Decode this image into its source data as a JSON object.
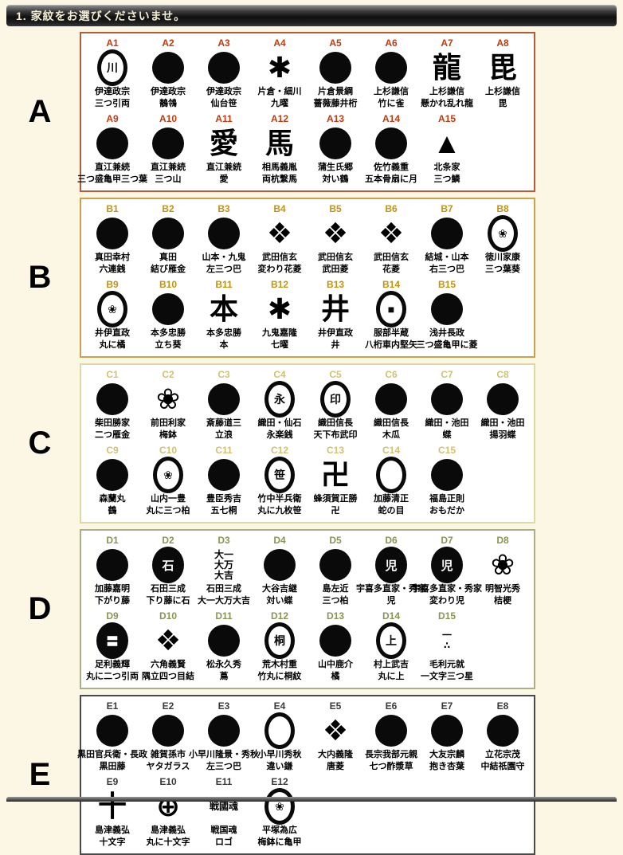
{
  "header": {
    "title": "1. 家紋をお選びくださいませ。"
  },
  "sections": [
    {
      "letter": "A",
      "border_color": "#b65c38",
      "code_color": "#c03b10",
      "items": [
        {
          "code": "A1",
          "name1": "伊達政宗",
          "name2": "三つ引両",
          "icon": {
            "type": "ring",
            "glyph": "川"
          }
        },
        {
          "code": "A2",
          "name1": "伊達政宗",
          "name2": "鶺鴒",
          "icon": {
            "type": "disc",
            "glyph": ""
          }
        },
        {
          "code": "A3",
          "name1": "伊達政宗",
          "name2": "仙台笹",
          "icon": {
            "type": "disc",
            "glyph": ""
          }
        },
        {
          "code": "A4",
          "name1": "片倉・細川",
          "name2": "九曜",
          "icon": {
            "type": "glyph",
            "glyph": "✱"
          }
        },
        {
          "code": "A5",
          "name1": "片倉景綱",
          "name2": "薔薇藤井桁",
          "icon": {
            "type": "disc",
            "glyph": ""
          }
        },
        {
          "code": "A6",
          "name1": "上杉謙信",
          "name2": "竹に雀",
          "icon": {
            "type": "disc",
            "glyph": ""
          }
        },
        {
          "code": "A7",
          "name1": "上杉謙信",
          "name2": "懸かれ乱れ龍",
          "icon": {
            "type": "glyph",
            "glyph": "龍"
          }
        },
        {
          "code": "A8",
          "name1": "上杉謙信",
          "name2": "毘",
          "icon": {
            "type": "glyph",
            "glyph": "毘"
          }
        },
        {
          "code": "A9",
          "name1": "直江兼続",
          "name2": "三つ盛亀甲三つ葉",
          "icon": {
            "type": "disc",
            "glyph": ""
          }
        },
        {
          "code": "A10",
          "name1": "直江兼続",
          "name2": "三つ山",
          "icon": {
            "type": "disc",
            "glyph": ""
          }
        },
        {
          "code": "A11",
          "name1": "直江兼続",
          "name2": "愛",
          "icon": {
            "type": "glyph",
            "glyph": "愛"
          }
        },
        {
          "code": "A12",
          "name1": "相馬義胤",
          "name2": "両杭繫馬",
          "icon": {
            "type": "glyph",
            "glyph": "馬"
          }
        },
        {
          "code": "A13",
          "name1": "蒲生氏郷",
          "name2": "対い鶴",
          "icon": {
            "type": "disc",
            "glyph": ""
          }
        },
        {
          "code": "A14",
          "name1": "佐竹義重",
          "name2": "五本骨扇に月",
          "icon": {
            "type": "disc",
            "glyph": ""
          }
        },
        {
          "code": "A15",
          "name1": "北条家",
          "name2": "三つ鱗",
          "icon": {
            "type": "glyph",
            "glyph": "▲"
          }
        }
      ]
    },
    {
      "letter": "B",
      "border_color": "#c8a34a",
      "code_color": "#bf9414",
      "items": [
        {
          "code": "B1",
          "name1": "真田幸村",
          "name2": "六連銭",
          "icon": {
            "type": "disc",
            "glyph": ""
          }
        },
        {
          "code": "B2",
          "name1": "真田",
          "name2": "結び雁金",
          "icon": {
            "type": "disc",
            "glyph": ""
          }
        },
        {
          "code": "B3",
          "name1": "山本・九鬼",
          "name2": "左三つ巴",
          "icon": {
            "type": "disc",
            "glyph": ""
          }
        },
        {
          "code": "B4",
          "name1": "武田信玄",
          "name2": "変わり花菱",
          "icon": {
            "type": "glyph",
            "glyph": "❖"
          }
        },
        {
          "code": "B5",
          "name1": "武田信玄",
          "name2": "武田菱",
          "icon": {
            "type": "glyph",
            "glyph": "❖"
          }
        },
        {
          "code": "B6",
          "name1": "武田信玄",
          "name2": "花菱",
          "icon": {
            "type": "glyph",
            "glyph": "❖"
          }
        },
        {
          "code": "B7",
          "name1": "結城・山本",
          "name2": "右三つ巴",
          "icon": {
            "type": "disc",
            "glyph": ""
          }
        },
        {
          "code": "B8",
          "name1": "徳川家康",
          "name2": "三つ葉葵",
          "icon": {
            "type": "ring",
            "glyph": "❀"
          }
        },
        {
          "code": "B9",
          "name1": "井伊直政",
          "name2": "丸に橘",
          "icon": {
            "type": "ring",
            "glyph": "❀"
          }
        },
        {
          "code": "B10",
          "name1": "本多忠勝",
          "name2": "立ち葵",
          "icon": {
            "type": "disc",
            "glyph": ""
          }
        },
        {
          "code": "B11",
          "name1": "本多忠勝",
          "name2": "本",
          "icon": {
            "type": "glyph",
            "glyph": "本"
          }
        },
        {
          "code": "B12",
          "name1": "九鬼嘉隆",
          "name2": "七曜",
          "icon": {
            "type": "glyph",
            "glyph": "✱"
          }
        },
        {
          "code": "B13",
          "name1": "井伊直政",
          "name2": "井",
          "icon": {
            "type": "glyph",
            "glyph": "井"
          }
        },
        {
          "code": "B14",
          "name1": "服部半蔵",
          "name2": "八桁車内堅矢",
          "icon": {
            "type": "ring",
            "glyph": "■"
          }
        },
        {
          "code": "B15",
          "name1": "浅井長政",
          "name2": "三つ盛亀甲に菱",
          "icon": {
            "type": "disc",
            "glyph": ""
          }
        }
      ]
    },
    {
      "letter": "C",
      "border_color": "#ded8a4",
      "code_color": "#cfc271",
      "items": [
        {
          "code": "C1",
          "name1": "柴田勝家",
          "name2": "二つ雁金",
          "icon": {
            "type": "disc",
            "glyph": ""
          }
        },
        {
          "code": "C2",
          "name1": "前田利家",
          "name2": "梅鉢",
          "icon": {
            "type": "glyph",
            "glyph": "❀"
          }
        },
        {
          "code": "C3",
          "name1": "斎藤道三",
          "name2": "立浪",
          "icon": {
            "type": "disc",
            "glyph": ""
          }
        },
        {
          "code": "C4",
          "name1": "織田・仙石",
          "name2": "永楽銭",
          "icon": {
            "type": "ring",
            "glyph": "永"
          }
        },
        {
          "code": "C5",
          "name1": "織田信長",
          "name2": "天下布武印",
          "icon": {
            "type": "ring",
            "glyph": "印"
          }
        },
        {
          "code": "C6",
          "name1": "織田信長",
          "name2": "木瓜",
          "icon": {
            "type": "disc",
            "glyph": ""
          }
        },
        {
          "code": "C7",
          "name1": "織田・池田",
          "name2": "蝶",
          "icon": {
            "type": "disc",
            "glyph": ""
          }
        },
        {
          "code": "C8",
          "name1": "織田・池田",
          "name2": "揚羽蝶",
          "icon": {
            "type": "disc",
            "glyph": ""
          }
        },
        {
          "code": "C9",
          "name1": "森蘭丸",
          "name2": "鶴",
          "icon": {
            "type": "disc",
            "glyph": ""
          }
        },
        {
          "code": "C10",
          "name1": "山内一豊",
          "name2": "丸に三つ柏",
          "icon": {
            "type": "ring",
            "glyph": "❀"
          }
        },
        {
          "code": "C11",
          "name1": "豊臣秀吉",
          "name2": "五七桐",
          "icon": {
            "type": "disc",
            "glyph": ""
          }
        },
        {
          "code": "C12",
          "name1": "竹中半兵衛",
          "name2": "丸に九枚笹",
          "icon": {
            "type": "ring",
            "glyph": "笹"
          }
        },
        {
          "code": "C13",
          "name1": "蜂須賀正勝",
          "name2": "卍",
          "icon": {
            "type": "glyph",
            "glyph": "卍"
          }
        },
        {
          "code": "C14",
          "name1": "加藤清正",
          "name2": "蛇の目",
          "icon": {
            "type": "ring",
            "glyph": ""
          }
        },
        {
          "code": "C15",
          "name1": "福島正則",
          "name2": "おもだか",
          "icon": {
            "type": "disc",
            "glyph": ""
          }
        }
      ]
    },
    {
      "letter": "D",
      "border_color": "#abaf85",
      "code_color": "#8a9455",
      "items": [
        {
          "code": "D1",
          "name1": "加藤嘉明",
          "name2": "下がり藤",
          "icon": {
            "type": "disc",
            "glyph": ""
          }
        },
        {
          "code": "D2",
          "name1": "石田三成",
          "name2": "下り藤に石",
          "icon": {
            "type": "disc-text",
            "glyph": "石"
          }
        },
        {
          "code": "D3",
          "name1": "石田三成",
          "name2": "大一大万大吉",
          "icon": {
            "type": "text",
            "glyph": "大一\n大万\n大吉"
          }
        },
        {
          "code": "D4",
          "name1": "大谷吉継",
          "name2": "対い蝶",
          "icon": {
            "type": "disc",
            "glyph": ""
          }
        },
        {
          "code": "D5",
          "name1": "島左近",
          "name2": "三つ柏",
          "icon": {
            "type": "disc",
            "glyph": ""
          }
        },
        {
          "code": "D6",
          "name1": "宇喜多直家・秀家",
          "name2": "児",
          "icon": {
            "type": "disc-text",
            "glyph": "児"
          }
        },
        {
          "code": "D7",
          "name1": "宇喜多直家・秀家",
          "name2": "変わり児",
          "icon": {
            "type": "disc-text",
            "glyph": "児"
          }
        },
        {
          "code": "D8",
          "name1": "明智光秀",
          "name2": "桔梗",
          "icon": {
            "type": "glyph",
            "glyph": "❀"
          }
        },
        {
          "code": "D9",
          "name1": "足利義輝",
          "name2": "丸に二つ引両",
          "icon": {
            "type": "disc-text",
            "glyph": "〓"
          }
        },
        {
          "code": "D10",
          "name1": "六角義賢",
          "name2": "隅立四つ目結",
          "icon": {
            "type": "glyph",
            "glyph": "❖"
          }
        },
        {
          "code": "D11",
          "name1": "松永久秀",
          "name2": "蔦",
          "icon": {
            "type": "disc",
            "glyph": ""
          }
        },
        {
          "code": "D12",
          "name1": "荒木村重",
          "name2": "竹丸に桐紋",
          "icon": {
            "type": "ring",
            "glyph": "桐"
          }
        },
        {
          "code": "D13",
          "name1": "山中鹿介",
          "name2": "橘",
          "icon": {
            "type": "disc",
            "glyph": ""
          }
        },
        {
          "code": "D14",
          "name1": "村上武吉",
          "name2": "丸に上",
          "icon": {
            "type": "ring",
            "glyph": "上"
          }
        },
        {
          "code": "D15",
          "name1": "毛利元就",
          "name2": "一文字三つ星",
          "icon": {
            "type": "text",
            "glyph": "一\n∴"
          }
        }
      ]
    },
    {
      "letter": "E",
      "border_color": "#4a4a4a",
      "code_color": "#3a3a3a",
      "items": [
        {
          "code": "E1",
          "name1": "黒田官兵衛・長政",
          "name2": "黒田藤",
          "icon": {
            "type": "disc",
            "glyph": ""
          }
        },
        {
          "code": "E2",
          "name1": "雑賀孫市",
          "name2": "ヤタガラス",
          "icon": {
            "type": "disc",
            "glyph": ""
          }
        },
        {
          "code": "E3",
          "name1": "小早川隆景・秀秋",
          "name2": "左三つ巴",
          "icon": {
            "type": "disc",
            "glyph": ""
          }
        },
        {
          "code": "E4",
          "name1": "小早川秀秋",
          "name2": "違い鎌",
          "icon": {
            "type": "ring",
            "glyph": ""
          }
        },
        {
          "code": "E5",
          "name1": "大内義隆",
          "name2": "唐菱",
          "icon": {
            "type": "glyph",
            "glyph": "❖"
          }
        },
        {
          "code": "E6",
          "name1": "長宗我部元親",
          "name2": "七つ酢漿草",
          "icon": {
            "type": "disc",
            "glyph": ""
          }
        },
        {
          "code": "E7",
          "name1": "大友宗麟",
          "name2": "抱き杏葉",
          "icon": {
            "type": "disc",
            "glyph": ""
          }
        },
        {
          "code": "E8",
          "name1": "立花宗茂",
          "name2": "中結祇園守",
          "icon": {
            "type": "disc",
            "glyph": ""
          }
        },
        {
          "code": "E9",
          "name1": "島津義弘",
          "name2": "十文字",
          "icon": {
            "type": "glyph",
            "glyph": "十"
          }
        },
        {
          "code": "E10",
          "name1": "島津義弘",
          "name2": "丸に十文字",
          "icon": {
            "type": "glyph",
            "glyph": "⊕"
          }
        },
        {
          "code": "E11",
          "name1": "戦国魂",
          "name2": "ロゴ",
          "icon": {
            "type": "text",
            "glyph": "戦國魂"
          }
        },
        {
          "code": "E12",
          "name1": "平塚為広",
          "name2": "梅鉢に亀甲",
          "icon": {
            "type": "ring",
            "glyph": "❀"
          }
        }
      ]
    }
  ]
}
